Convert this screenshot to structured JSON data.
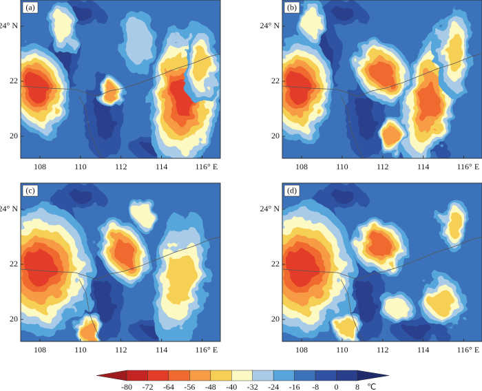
{
  "panels": [
    {
      "label": "(a)"
    },
    {
      "label": "(b)"
    },
    {
      "label": "(c)"
    },
    {
      "label": "(d)"
    }
  ],
  "lon_range": [
    107.05,
    116.9
  ],
  "lat_range": [
    19.2,
    24.95
  ],
  "lon_ticks": [
    108,
    110,
    112,
    114,
    {
      "value": 116,
      "label": "116° E"
    }
  ],
  "lat_ticks": [
    20,
    22,
    {
      "value": 24,
      "label": "24° N"
    }
  ],
  "colorbar": {
    "ticks": [
      -80,
      -72,
      -64,
      -56,
      -48,
      -40,
      -32,
      -24,
      -16,
      -8,
      0,
      8
    ],
    "unit": "℃",
    "colors": [
      "#9e1b1e",
      "#c42422",
      "#e33d2a",
      "#f0692f",
      "#f79b45",
      "#f6cf55",
      "#fdf9c2",
      "#a9cbe8",
      "#57a5db",
      "#3b72b9",
      "#2f52a2",
      "#293f8c",
      "#1e2a6a"
    ]
  }
}
